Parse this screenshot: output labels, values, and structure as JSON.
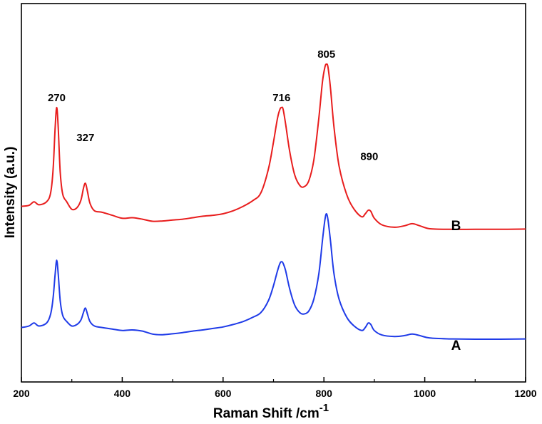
{
  "chart_data": {
    "type": "line",
    "title": "",
    "xlabel": "Raman Shift /cm",
    "xlabel_sup": "-1",
    "ylabel": "Intensity (a.u.)",
    "xlim": [
      200,
      1200
    ],
    "ylim": [
      0,
      1
    ],
    "xticks": [
      200,
      400,
      600,
      800,
      1000,
      1200
    ],
    "grid": false,
    "legend": "none",
    "peak_labels": [
      "270",
      "327",
      "716",
      "805",
      "890"
    ],
    "peaks": [
      {
        "label": "270",
        "x": 270,
        "y": 0.855
      },
      {
        "label": "327",
        "x": 327,
        "y": 0.722
      },
      {
        "label": "716",
        "x": 716,
        "y": 0.855
      },
      {
        "label": "805",
        "x": 805,
        "y": 1.0
      },
      {
        "label": "890",
        "x": 890,
        "y": 0.658
      }
    ],
    "series": [
      {
        "name": "A",
        "color": "#1f3be8",
        "label_at": [
          1062,
          0.045
        ],
        "baseline": 0.08,
        "points": [
          [
            200,
            0.12
          ],
          [
            215,
            0.125
          ],
          [
            225,
            0.135
          ],
          [
            235,
            0.125
          ],
          [
            250,
            0.135
          ],
          [
            258,
            0.165
          ],
          [
            263,
            0.22
          ],
          [
            267,
            0.3
          ],
          [
            270,
            0.345
          ],
          [
            273,
            0.3
          ],
          [
            277,
            0.21
          ],
          [
            282,
            0.16
          ],
          [
            290,
            0.14
          ],
          [
            300,
            0.125
          ],
          [
            310,
            0.13
          ],
          [
            318,
            0.145
          ],
          [
            323,
            0.17
          ],
          [
            327,
            0.185
          ],
          [
            331,
            0.165
          ],
          [
            336,
            0.14
          ],
          [
            345,
            0.125
          ],
          [
            360,
            0.12
          ],
          [
            380,
            0.115
          ],
          [
            400,
            0.11
          ],
          [
            420,
            0.112
          ],
          [
            440,
            0.108
          ],
          [
            460,
            0.098
          ],
          [
            480,
            0.096
          ],
          [
            500,
            0.099
          ],
          [
            520,
            0.103
          ],
          [
            540,
            0.108
          ],
          [
            560,
            0.112
          ],
          [
            580,
            0.117
          ],
          [
            600,
            0.122
          ],
          [
            620,
            0.13
          ],
          [
            640,
            0.14
          ],
          [
            660,
            0.155
          ],
          [
            675,
            0.17
          ],
          [
            690,
            0.21
          ],
          [
            700,
            0.26
          ],
          [
            708,
            0.31
          ],
          [
            713,
            0.335
          ],
          [
            716,
            0.34
          ],
          [
            719,
            0.335
          ],
          [
            724,
            0.31
          ],
          [
            732,
            0.25
          ],
          [
            742,
            0.195
          ],
          [
            752,
            0.17
          ],
          [
            760,
            0.165
          ],
          [
            770,
            0.175
          ],
          [
            780,
            0.215
          ],
          [
            790,
            0.3
          ],
          [
            797,
            0.41
          ],
          [
            802,
            0.48
          ],
          [
            805,
            0.5
          ],
          [
            808,
            0.48
          ],
          [
            813,
            0.41
          ],
          [
            820,
            0.3
          ],
          [
            830,
            0.215
          ],
          [
            845,
            0.155
          ],
          [
            860,
            0.125
          ],
          [
            875,
            0.11
          ],
          [
            882,
            0.12
          ],
          [
            888,
            0.135
          ],
          [
            893,
            0.13
          ],
          [
            900,
            0.11
          ],
          [
            915,
            0.095
          ],
          [
            940,
            0.09
          ],
          [
            960,
            0.093
          ],
          [
            975,
            0.098
          ],
          [
            990,
            0.093
          ],
          [
            1010,
            0.085
          ],
          [
            1050,
            0.082
          ],
          [
            1100,
            0.081
          ],
          [
            1150,
            0.081
          ],
          [
            1200,
            0.082
          ]
        ]
      },
      {
        "name": "B",
        "color": "#e81d1d",
        "label_at": [
          1062,
          0.445
        ],
        "baseline": 0.42,
        "points": [
          [
            200,
            0.525
          ],
          [
            215,
            0.528
          ],
          [
            225,
            0.54
          ],
          [
            235,
            0.53
          ],
          [
            250,
            0.54
          ],
          [
            258,
            0.57
          ],
          [
            263,
            0.65
          ],
          [
            267,
            0.79
          ],
          [
            270,
            0.855
          ],
          [
            273,
            0.79
          ],
          [
            277,
            0.64
          ],
          [
            282,
            0.565
          ],
          [
            290,
            0.54
          ],
          [
            300,
            0.515
          ],
          [
            310,
            0.52
          ],
          [
            318,
            0.545
          ],
          [
            323,
            0.585
          ],
          [
            327,
            0.602
          ],
          [
            331,
            0.575
          ],
          [
            336,
            0.535
          ],
          [
            345,
            0.51
          ],
          [
            360,
            0.505
          ],
          [
            380,
            0.495
          ],
          [
            400,
            0.485
          ],
          [
            420,
            0.487
          ],
          [
            440,
            0.482
          ],
          [
            460,
            0.475
          ],
          [
            480,
            0.476
          ],
          [
            500,
            0.479
          ],
          [
            520,
            0.482
          ],
          [
            540,
            0.487
          ],
          [
            560,
            0.492
          ],
          [
            580,
            0.495
          ],
          [
            600,
            0.5
          ],
          [
            620,
            0.51
          ],
          [
            640,
            0.525
          ],
          [
            660,
            0.545
          ],
          [
            675,
            0.57
          ],
          [
            690,
            0.65
          ],
          [
            700,
            0.74
          ],
          [
            708,
            0.82
          ],
          [
            713,
            0.85
          ],
          [
            716,
            0.855
          ],
          [
            719,
            0.85
          ],
          [
            724,
            0.8
          ],
          [
            732,
            0.71
          ],
          [
            742,
            0.63
          ],
          [
            752,
            0.595
          ],
          [
            760,
            0.59
          ],
          [
            770,
            0.61
          ],
          [
            780,
            0.68
          ],
          [
            790,
            0.82
          ],
          [
            797,
            0.94
          ],
          [
            802,
            0.99
          ],
          [
            805,
            1.0
          ],
          [
            808,
            0.99
          ],
          [
            813,
            0.92
          ],
          [
            820,
            0.79
          ],
          [
            830,
            0.66
          ],
          [
            845,
            0.565
          ],
          [
            860,
            0.515
          ],
          [
            875,
            0.49
          ],
          [
            882,
            0.5
          ],
          [
            888,
            0.512
          ],
          [
            893,
            0.508
          ],
          [
            900,
            0.485
          ],
          [
            915,
            0.463
          ],
          [
            940,
            0.455
          ],
          [
            960,
            0.46
          ],
          [
            975,
            0.467
          ],
          [
            990,
            0.46
          ],
          [
            1010,
            0.45
          ],
          [
            1050,
            0.448
          ],
          [
            1100,
            0.448
          ],
          [
            1150,
            0.448
          ],
          [
            1200,
            0.449
          ]
        ]
      }
    ]
  }
}
